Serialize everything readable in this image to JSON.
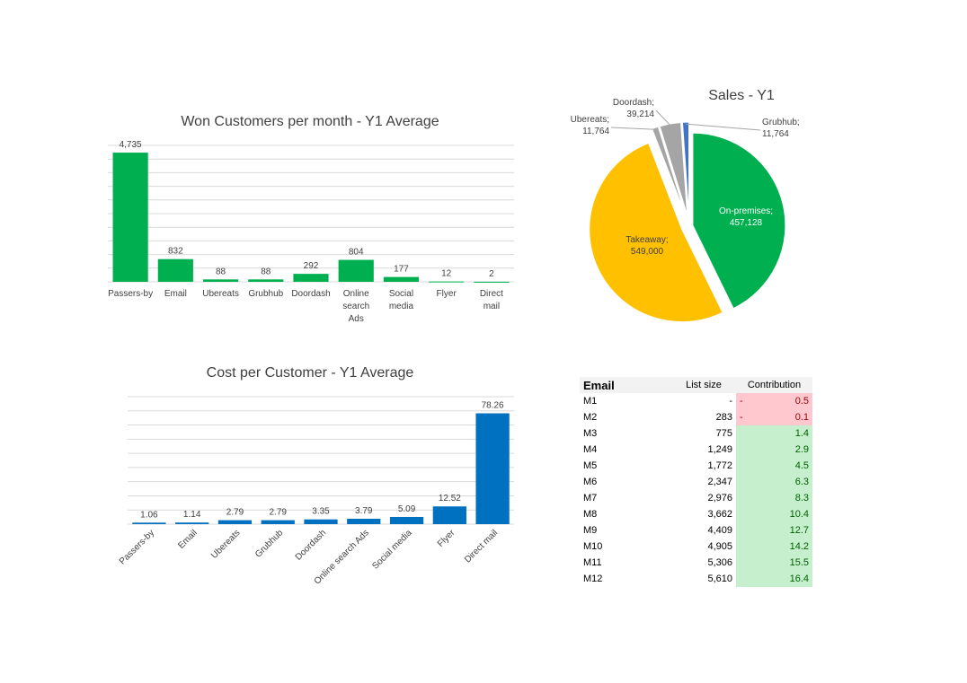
{
  "chart_data": [
    {
      "type": "bar",
      "title": "Won Customers per month - Y1 Average",
      "categories": [
        "Passers-by",
        "Email",
        "Ubereats",
        "Grubhub",
        "Doordash",
        "Online search Ads",
        "Social media",
        "Flyer",
        "Direct mail"
      ],
      "category_lines": [
        [
          "Passers-by"
        ],
        [
          "Email"
        ],
        [
          "Ubereats"
        ],
        [
          "Grubhub"
        ],
        [
          "Doordash"
        ],
        [
          "Online",
          "search",
          "Ads"
        ],
        [
          "Social",
          "media"
        ],
        [
          "Flyer"
        ],
        [
          "Direct",
          "mail"
        ]
      ],
      "values": [
        4735,
        832,
        88,
        88,
        292,
        804,
        177,
        12,
        2
      ],
      "value_labels": [
        "4,735",
        "832",
        "88",
        "88",
        "292",
        "804",
        "177",
        "12",
        "2"
      ],
      "ylim": [
        0,
        5000
      ],
      "grid": true,
      "color": "#00b050"
    },
    {
      "type": "bar",
      "title": "Cost per Customer - Y1 Average",
      "categories": [
        "Passers-by",
        "Email",
        "Ubereats",
        "Grubhub",
        "Doordash",
        "Online search Ads",
        "Social media",
        "Flyer",
        "Direct mail"
      ],
      "values": [
        1.06,
        1.14,
        2.79,
        2.79,
        3.35,
        3.79,
        5.09,
        12.52,
        78.26
      ],
      "value_labels": [
        "1.06",
        "1.14",
        "2.79",
        "2.79",
        "3.35",
        "3.79",
        "5.09",
        "12.52",
        "78.26"
      ],
      "ylim": [
        0,
        90
      ],
      "grid": true,
      "color": "#0070c0"
    },
    {
      "type": "pie",
      "title": "Sales - Y1",
      "slices": [
        {
          "name": "On-premises",
          "value": 457128,
          "value_label": "457,128",
          "color": "#00b050"
        },
        {
          "name": "Takeaway",
          "value": 549000,
          "value_label": "549,000",
          "color": "#ffc000"
        },
        {
          "name": "Ubereats",
          "value": 11764,
          "value_label": "11,764",
          "color": "#a5a5a5"
        },
        {
          "name": "Doordash",
          "value": 39214,
          "value_label": "39,214",
          "color": "#a5a5a5"
        },
        {
          "name": "Grubhub",
          "value": 11764,
          "value_label": "11,764",
          "color": "#4472c4"
        }
      ]
    }
  ],
  "email_table": {
    "headers": {
      "name": "Email",
      "size": "List size",
      "contribution": "Contribution"
    },
    "rows": [
      {
        "month": "M1",
        "list_size": "-",
        "contribution": "0.5",
        "negative": true
      },
      {
        "month": "M2",
        "list_size": "283",
        "contribution": "0.1",
        "negative": true
      },
      {
        "month": "M3",
        "list_size": "775",
        "contribution": "1.4",
        "negative": false
      },
      {
        "month": "M4",
        "list_size": "1,249",
        "contribution": "2.9",
        "negative": false
      },
      {
        "month": "M5",
        "list_size": "1,772",
        "contribution": "4.5",
        "negative": false
      },
      {
        "month": "M6",
        "list_size": "2,347",
        "contribution": "6.3",
        "negative": false
      },
      {
        "month": "M7",
        "list_size": "2,976",
        "contribution": "8.3",
        "negative": false
      },
      {
        "month": "M8",
        "list_size": "3,662",
        "contribution": "10.4",
        "negative": false
      },
      {
        "month": "M9",
        "list_size": "4,409",
        "contribution": "12.7",
        "negative": false
      },
      {
        "month": "M10",
        "list_size": "4,905",
        "contribution": "14.2",
        "negative": false
      },
      {
        "month": "M11",
        "list_size": "5,306",
        "contribution": "15.5",
        "negative": false
      },
      {
        "month": "M12",
        "list_size": "5,610",
        "contribution": "16.4",
        "negative": false
      }
    ],
    "negative_marker": "-"
  }
}
